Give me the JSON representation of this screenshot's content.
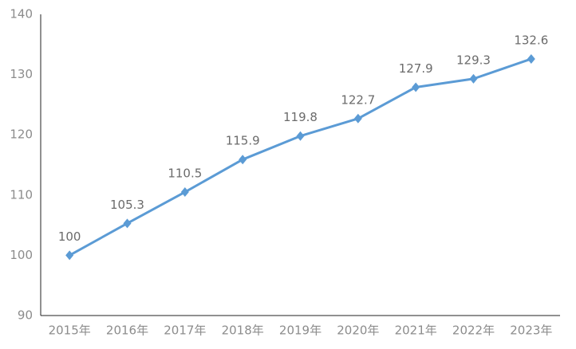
{
  "chart_data": {
    "type": "line",
    "categories": [
      "2015年",
      "2016年",
      "2017年",
      "2018年",
      "2019年",
      "2020年",
      "2021年",
      "2022年",
      "2023年"
    ],
    "series": [
      {
        "color": "#5b9bd5",
        "values": [
          100,
          105.3,
          110.5,
          115.9,
          119.8,
          122.7,
          127.9,
          129.3,
          132.6
        ]
      }
    ],
    "ylim": [
      90,
      140
    ],
    "yticks": [
      90,
      100,
      110,
      120,
      130,
      140
    ],
    "grid": false
  }
}
